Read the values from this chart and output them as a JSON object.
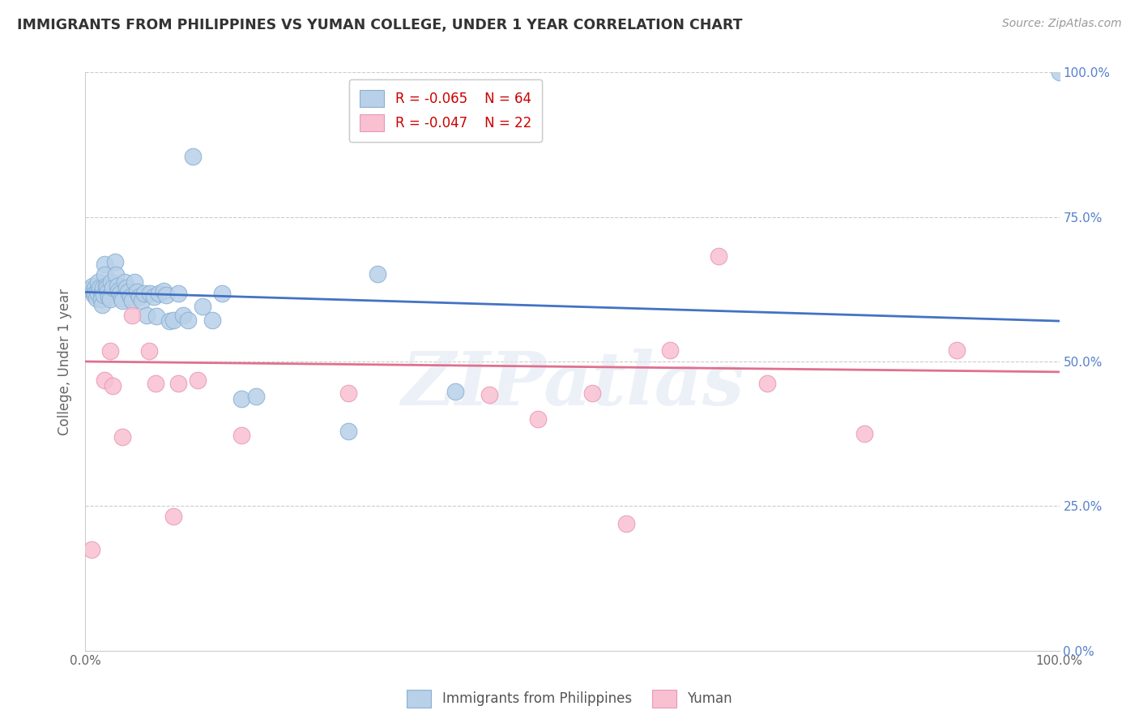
{
  "title": "IMMIGRANTS FROM PHILIPPINES VS YUMAN COLLEGE, UNDER 1 YEAR CORRELATION CHART",
  "source": "Source: ZipAtlas.com",
  "ylabel": "College, Under 1 year",
  "xlim": [
    0.0,
    1.0
  ],
  "ylim": [
    0.0,
    1.0
  ],
  "legend_label1": "Immigrants from Philippines",
  "legend_label2": "Yuman",
  "R1": "-0.065",
  "N1": "64",
  "R2": "-0.047",
  "N2": "22",
  "blue_dot_color": "#b8d0e8",
  "blue_dot_edge": "#8ab0d4",
  "pink_dot_color": "#f8c0d0",
  "pink_dot_edge": "#e898b8",
  "blue_line_color": "#4472c4",
  "pink_line_color": "#e07090",
  "watermark": "ZIPatlas",
  "background_color": "#ffffff",
  "grid_color": "#cccccc",
  "right_tick_color": "#5580cc",
  "blue_points_x": [
    0.005,
    0.007,
    0.008,
    0.009,
    0.01,
    0.01,
    0.011,
    0.012,
    0.013,
    0.013,
    0.015,
    0.016,
    0.016,
    0.017,
    0.018,
    0.019,
    0.02,
    0.02,
    0.021,
    0.022,
    0.023,
    0.024,
    0.025,
    0.026,
    0.028,
    0.03,
    0.031,
    0.033,
    0.034,
    0.035,
    0.037,
    0.038,
    0.04,
    0.042,
    0.044,
    0.046,
    0.048,
    0.05,
    0.053,
    0.055,
    0.058,
    0.06,
    0.063,
    0.066,
    0.07,
    0.073,
    0.075,
    0.08,
    0.083,
    0.086,
    0.09,
    0.095,
    0.1,
    0.105,
    0.11,
    0.12,
    0.13,
    0.14,
    0.16,
    0.175,
    0.27,
    0.3,
    0.38,
    1.0
  ],
  "blue_points_y": [
    0.625,
    0.63,
    0.622,
    0.615,
    0.628,
    0.618,
    0.61,
    0.622,
    0.638,
    0.618,
    0.628,
    0.618,
    0.608,
    0.598,
    0.628,
    0.615,
    0.668,
    0.65,
    0.63,
    0.628,
    0.62,
    0.612,
    0.608,
    0.638,
    0.628,
    0.672,
    0.65,
    0.63,
    0.622,
    0.618,
    0.61,
    0.605,
    0.638,
    0.628,
    0.62,
    0.612,
    0.605,
    0.638,
    0.62,
    0.612,
    0.605,
    0.618,
    0.58,
    0.618,
    0.612,
    0.578,
    0.618,
    0.622,
    0.615,
    0.57,
    0.572,
    0.618,
    0.58,
    0.572,
    0.855,
    0.595,
    0.572,
    0.618,
    0.435,
    0.44,
    0.38,
    0.652,
    0.448,
    1.0
  ],
  "pink_points_x": [
    0.006,
    0.02,
    0.025,
    0.028,
    0.038,
    0.048,
    0.065,
    0.072,
    0.09,
    0.095,
    0.115,
    0.16,
    0.27,
    0.415,
    0.465,
    0.52,
    0.555,
    0.6,
    0.65,
    0.7,
    0.8,
    0.895
  ],
  "pink_points_y": [
    0.175,
    0.468,
    0.518,
    0.458,
    0.37,
    0.58,
    0.518,
    0.462,
    0.232,
    0.462,
    0.468,
    0.372,
    0.445,
    0.442,
    0.4,
    0.445,
    0.22,
    0.52,
    0.682,
    0.462,
    0.375,
    0.52
  ],
  "blue_trendline_x": [
    0.0,
    1.0
  ],
  "blue_trendline_y": [
    0.62,
    0.57
  ],
  "pink_trendline_x": [
    0.0,
    1.0
  ],
  "pink_trendline_y": [
    0.5,
    0.482
  ]
}
